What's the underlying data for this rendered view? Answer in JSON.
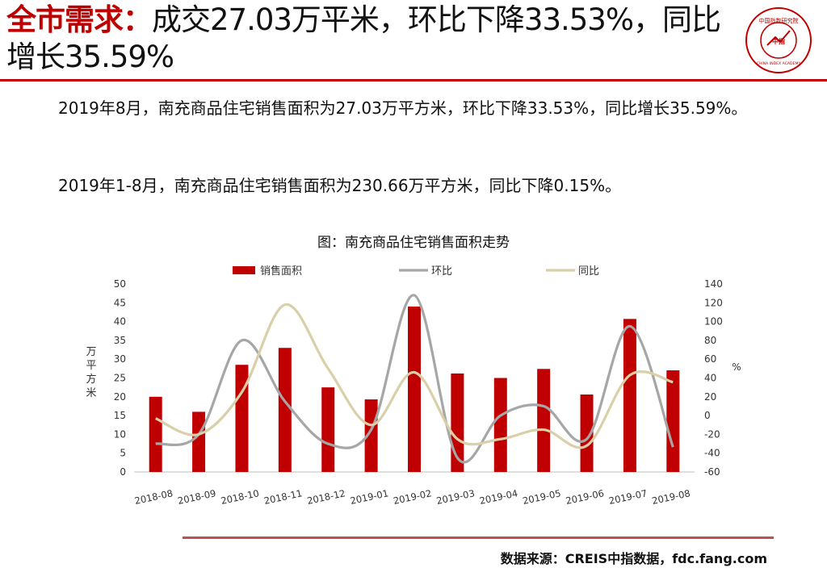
{
  "header": {
    "title_highlight": "全市需求：",
    "title_rest": "成交27.03万平米，环比下降33.53%，同比增长35.59%",
    "logo_top_text": "中国指数研究院",
    "logo_center_text": "中指",
    "logo_bottom_text": "CHINA INDEX ACADEMY"
  },
  "body": {
    "paragraph1": "2019年8月，南充商品住宅销售面积为27.03万平方米，环比下降33.53%，同比增长35.59%。",
    "paragraph2": "2019年1-8月，南充商品住宅销售面积为230.66万平方米，同比下降0.15%。"
  },
  "footer": {
    "source": "数据来源：CREIS中指数据，fdc.fang.com"
  },
  "colors": {
    "accent_red": "#c00000",
    "bar": "#c00000",
    "mom_line": "#a6a6a6",
    "yoy_line": "#d9cfa8"
  },
  "chart_data": {
    "type": "bar",
    "title": "图：南充商品住宅销售面积走势",
    "categories": [
      "2018-08",
      "2018-09",
      "2018-10",
      "2018-11",
      "2018-12",
      "2019-01",
      "2019-02",
      "2019-03",
      "2019-04",
      "2019-05",
      "2019-06",
      "2019-07",
      "2019-08"
    ],
    "ylabel_left": "万平方米",
    "ylabel_right": "%",
    "ylim_left": [
      0,
      50
    ],
    "ylim_right": [
      -60,
      140
    ],
    "left_ticks": [
      0,
      5,
      10,
      15,
      20,
      25,
      30,
      35,
      40,
      45,
      50
    ],
    "right_ticks": [
      -60,
      -40,
      -20,
      0,
      20,
      40,
      60,
      80,
      100,
      120,
      140
    ],
    "legend_position": "top",
    "series": [
      {
        "name": "销售面积",
        "kind": "bar",
        "axis": "left",
        "values": [
          20.0,
          16.0,
          28.5,
          33.0,
          22.5,
          19.3,
          44.0,
          26.2,
          25.0,
          27.4,
          20.6,
          40.7,
          27.03
        ]
      },
      {
        "name": "环比",
        "kind": "line",
        "axis": "right",
        "values": [
          -30,
          -20,
          80,
          15,
          -30,
          -15,
          128,
          -45,
          0,
          10,
          -25,
          95,
          -33.53
        ]
      },
      {
        "name": "同比",
        "kind": "line",
        "axis": "right",
        "values": [
          -3,
          -20,
          25,
          118,
          50,
          -10,
          46,
          -25,
          -25,
          -15,
          -32,
          43,
          35.59
        ]
      }
    ]
  }
}
